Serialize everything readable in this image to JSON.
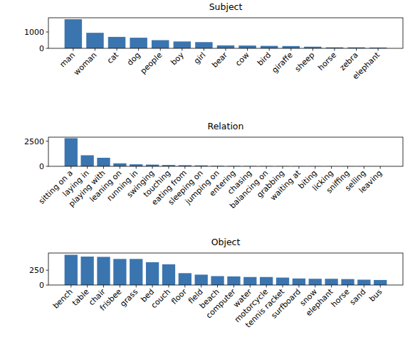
{
  "chart_data": [
    {
      "type": "bar",
      "title": "Subject",
      "categories": [
        "man",
        "woman",
        "cat",
        "dog",
        "people",
        "boy",
        "girl",
        "bear",
        "cow",
        "bird",
        "giraffe",
        "sheep",
        "horse",
        "zebra",
        "elephant"
      ],
      "values": [
        1780,
        950,
        700,
        650,
        500,
        420,
        380,
        180,
        170,
        150,
        140,
        100,
        60,
        60,
        50
      ],
      "color": "#3b75af",
      "ylim": [
        0,
        1870
      ],
      "yticks": [
        0,
        1000
      ]
    },
    {
      "type": "bar",
      "title": "Relation",
      "categories": [
        "sitting on a",
        "laying in",
        "playing with",
        "leaning on",
        "running in",
        "swinging",
        "touching",
        "eating from",
        "sleeping on",
        "jumping on",
        "entering",
        "chasing",
        "balancing on",
        "grabbing",
        "waiting at",
        "biting",
        "licking",
        "sniffing",
        "selling",
        "leaving"
      ],
      "values": [
        2800,
        1100,
        850,
        300,
        200,
        170,
        130,
        110,
        90,
        50,
        40,
        30,
        25,
        20,
        15,
        15,
        10,
        10,
        8,
        5
      ],
      "color": "#3b75af",
      "ylim": [
        0,
        2900
      ],
      "yticks": [
        0,
        2500
      ]
    },
    {
      "type": "bar",
      "title": "Object",
      "categories": [
        "bench",
        "table",
        "chair",
        "frisbee",
        "grass",
        "bed",
        "couch",
        "floor",
        "field",
        "beach",
        "computer",
        "water",
        "motorcycle",
        "tennis racket",
        "surfboard",
        "snow",
        "elephant",
        "horse",
        "sand",
        "bus"
      ],
      "values": [
        510,
        480,
        475,
        440,
        440,
        385,
        350,
        200,
        175,
        150,
        145,
        135,
        135,
        125,
        110,
        105,
        105,
        100,
        90,
        85
      ],
      "color": "#3b75af",
      "ylim": [
        0,
        540
      ],
      "yticks": [
        0,
        250
      ]
    }
  ]
}
